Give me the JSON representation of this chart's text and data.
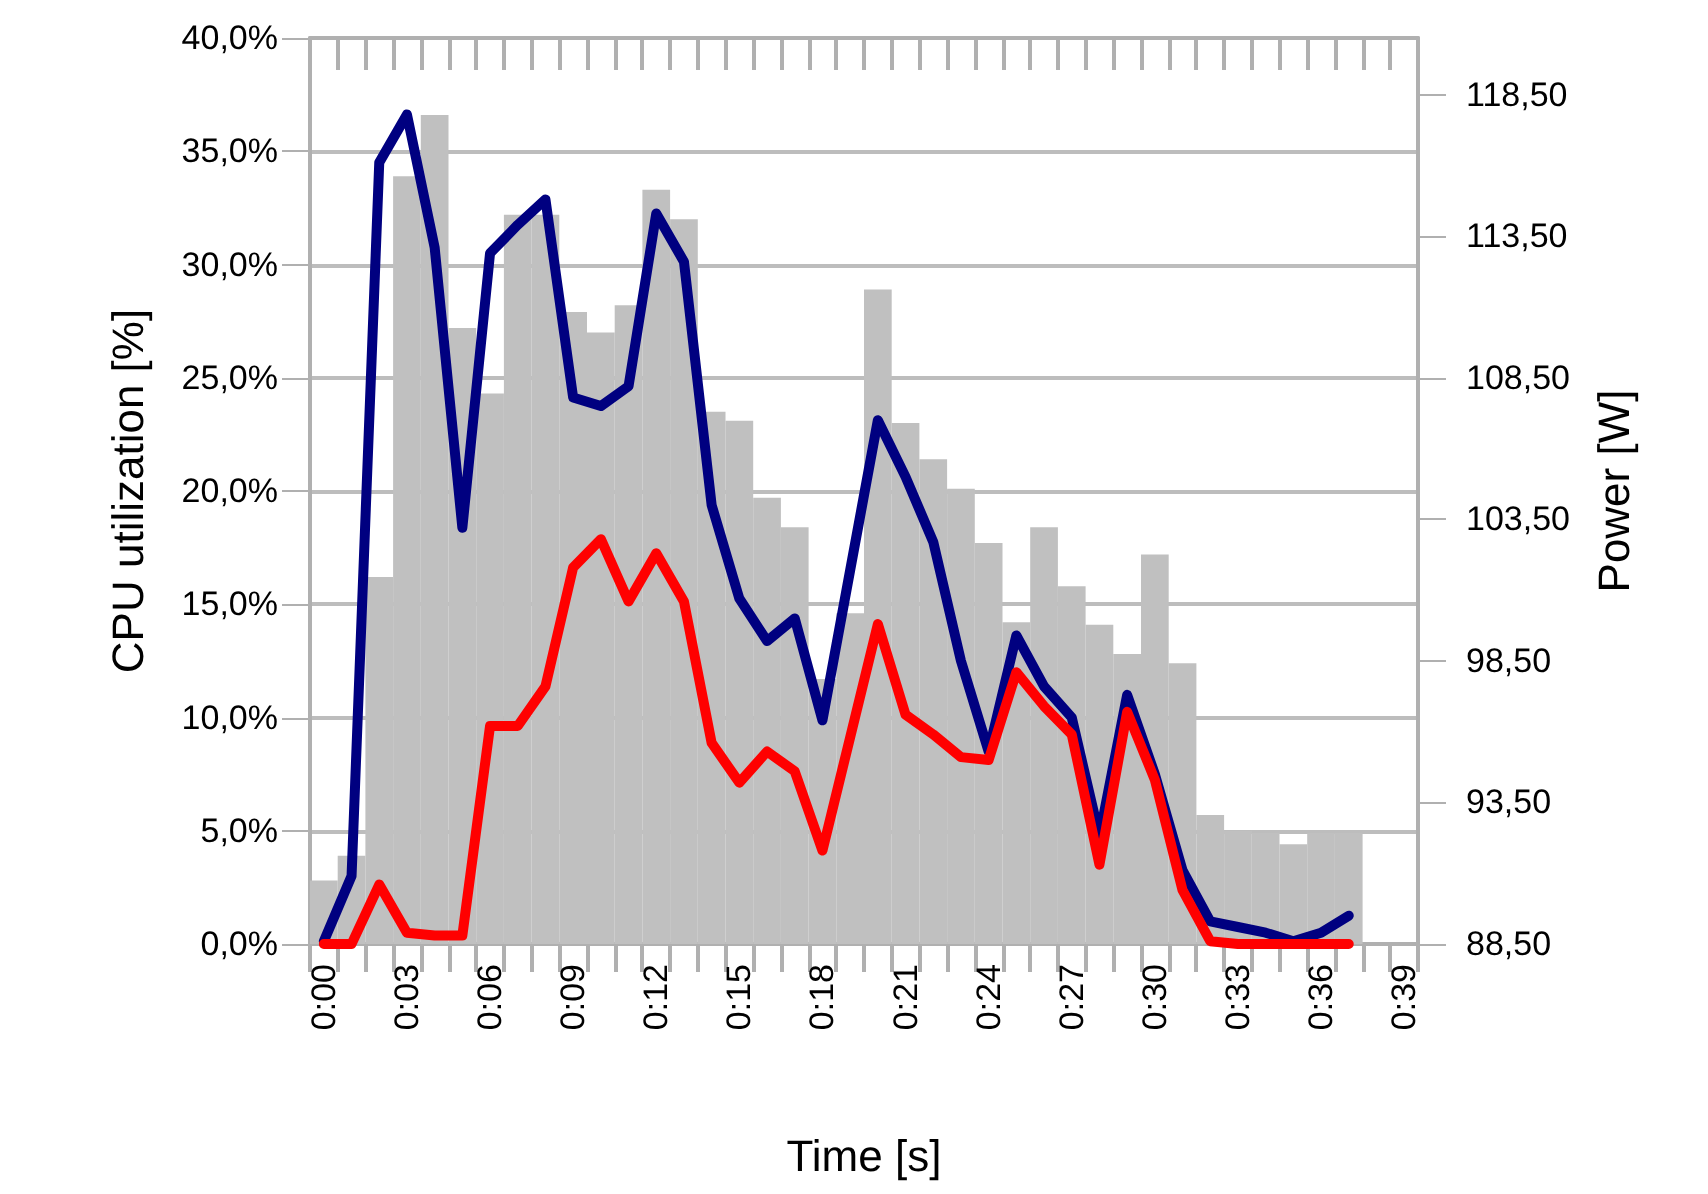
{
  "chart_data": {
    "type": "bar",
    "xlabel": "Time [s]",
    "ylabel": "CPU utilization [%]",
    "y2label": "Power [W]",
    "categories": [
      "0:00",
      null,
      null,
      "0:03",
      null,
      null,
      "0:06",
      null,
      null,
      "0:09",
      null,
      null,
      "0:12",
      null,
      null,
      "0:15",
      null,
      null,
      "0:18",
      null,
      null,
      "0:21",
      null,
      null,
      "0:24",
      null,
      null,
      "0:27",
      null,
      null,
      "0:30",
      null,
      null,
      "0:33",
      null,
      null,
      "0:36",
      null,
      null,
      "0:39"
    ],
    "series": [
      {
        "color": "#c0c0c0",
        "values": [
          2.8,
          3.9,
          16.2,
          33.9,
          36.6,
          27.2,
          24.3,
          32.2,
          32.2,
          27.9,
          27.0,
          28.2,
          33.3,
          32.0,
          23.5,
          23.1,
          19.7,
          18.4,
          11.7,
          14.6,
          28.9,
          23.0,
          21.4,
          20.1,
          17.7,
          14.2,
          18.4,
          15.8,
          14.1,
          12.8,
          17.2,
          12.4,
          5.7,
          5.0,
          4.9,
          4.4,
          4.9,
          4.9,
          null,
          null
        ]
      },
      {
        "type": "line",
        "axis": "y2",
        "color": "#000080",
        "values": [
          88.6,
          90.9,
          116.1,
          117.8,
          113.1,
          103.2,
          112.9,
          113.9,
          114.8,
          107.8,
          107.5,
          108.2,
          114.3,
          112.6,
          104.0,
          100.7,
          99.2,
          100.0,
          96.4,
          101.7,
          107.0,
          105.0,
          102.7,
          98.5,
          95.3,
          99.4,
          97.6,
          96.5,
          92.3,
          97.3,
          94.5,
          91.1,
          89.3,
          89.1,
          88.9,
          88.6,
          88.9,
          89.5,
          null,
          null
        ]
      },
      {
        "type": "line",
        "axis": "y2",
        "color": "#ff0000",
        "values": [
          88.5,
          88.5,
          90.6,
          88.9,
          88.8,
          88.8,
          96.2,
          96.2,
          97.6,
          101.8,
          102.8,
          100.6,
          102.3,
          100.6,
          95.6,
          94.2,
          95.3,
          94.6,
          91.8,
          95.8,
          99.8,
          96.6,
          95.9,
          95.1,
          95.0,
          98.1,
          96.9,
          95.9,
          91.3,
          96.7,
          94.3,
          90.4,
          88.6,
          88.5,
          88.5,
          88.5,
          88.5,
          88.5,
          null,
          null
        ]
      }
    ],
    "ylim": [
      0,
      40
    ],
    "yticks": [
      {
        "value": 0,
        "label": "0,0%"
      },
      {
        "value": 5,
        "label": "5,0%"
      },
      {
        "value": 10,
        "label": "10,0%"
      },
      {
        "value": 15,
        "label": "15,0%"
      },
      {
        "value": 20,
        "label": "20,0%"
      },
      {
        "value": 25,
        "label": "25,0%"
      },
      {
        "value": 30,
        "label": "30,0%"
      },
      {
        "value": 35,
        "label": "35,0%"
      },
      {
        "value": 40,
        "label": "40,0%"
      }
    ],
    "y2lim": [
      88.5,
      120.5
    ],
    "y2ticks": [
      {
        "value": 88.5,
        "label": "88,50"
      },
      {
        "value": 93.5,
        "label": "93,50"
      },
      {
        "value": 98.5,
        "label": "98,50"
      },
      {
        "value": 103.5,
        "label": "103,50"
      },
      {
        "value": 108.5,
        "label": "108,50"
      },
      {
        "value": 113.5,
        "label": "113,50"
      },
      {
        "value": 118.5,
        "label": "118,50"
      }
    ],
    "grid": "y",
    "marker": "none",
    "line_style": "solid"
  }
}
